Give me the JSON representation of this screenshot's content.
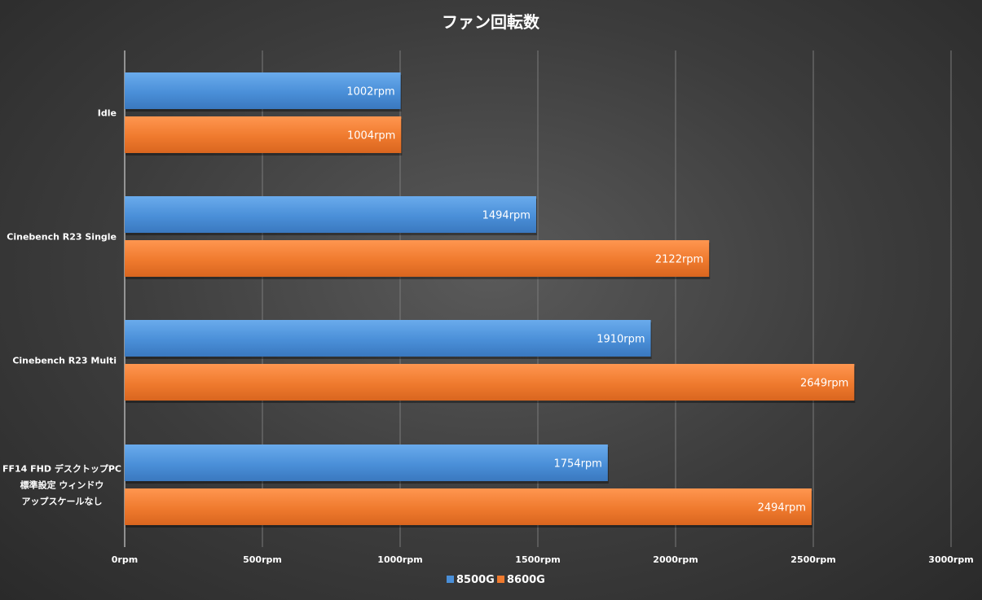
{
  "chart_data": {
    "type": "bar",
    "orientation": "horizontal",
    "title": "ファン回転数",
    "categories": [
      [
        "Idle"
      ],
      [
        "Cinebench R23 Single"
      ],
      [
        "Cinebench R23 Multi"
      ],
      [
        "FF14 FHD デスクトップPC",
        "標準設定 ウィンドウ",
        "アップスケールなし"
      ]
    ],
    "series": [
      {
        "name": "8500G",
        "color": "#4a8fd8",
        "values": [
          1002,
          1494,
          1910,
          1754
        ],
        "labels": [
          "1002rpm",
          "1494rpm",
          "1910rpm",
          "1754rpm"
        ]
      },
      {
        "name": "8600G",
        "color": "#ef7a2e",
        "values": [
          1004,
          2122,
          2649,
          2494
        ],
        "labels": [
          "1004rpm",
          "2122rpm",
          "2649rpm",
          "2494rpm"
        ]
      }
    ],
    "xlim": [
      0,
      3000
    ],
    "xticks": [
      0,
      500,
      1000,
      1500,
      2000,
      2500,
      3000
    ],
    "xtick_labels": [
      "0rpm",
      "500rpm",
      "1000rpm",
      "1500rpm",
      "2000rpm",
      "2500rpm",
      "3000rpm"
    ],
    "grid": true,
    "legend_position": "bottom"
  }
}
